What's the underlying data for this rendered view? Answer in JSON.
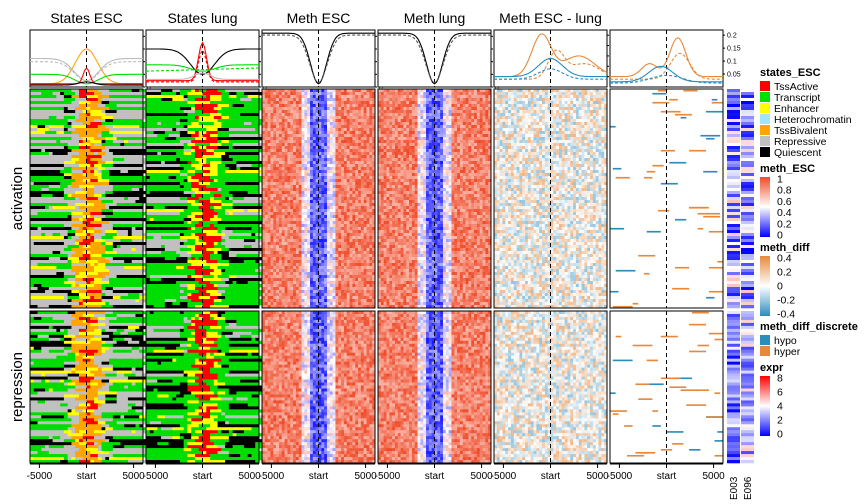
{
  "chart_data": {
    "type": "heatmap",
    "panels": [
      {
        "id": "states_esc",
        "title": "States ESC",
        "kind": "states",
        "profile_ticks": [
          "0.8",
          "0.6",
          "0.4",
          "0.2",
          "0"
        ],
        "profile_ylim": [
          0,
          0.9
        ]
      },
      {
        "id": "states_lung",
        "title": "States lung",
        "kind": "states",
        "profile_ticks": [
          "0.8",
          "0.6",
          "0.4",
          "0.2",
          "0"
        ],
        "profile_ylim": [
          0,
          0.9
        ]
      },
      {
        "id": "meth_esc",
        "title": "Meth ESC",
        "kind": "meth",
        "profile_ticks": [
          "0.8",
          "0.6",
          "0.4",
          "0.2",
          "0"
        ],
        "profile_ylim": [
          0,
          0.9
        ]
      },
      {
        "id": "meth_lung",
        "title": "Meth lung",
        "kind": "meth",
        "profile_ticks": [
          "0.8",
          "0.6",
          "0.4",
          "0.2",
          "0"
        ],
        "profile_ylim": [
          0,
          0.9
        ]
      },
      {
        "id": "meth_diff",
        "title": "Meth ESC - lung",
        "kind": "diff",
        "profile_ticks": [
          "0.1",
          "0.08",
          "0.06",
          "0.04",
          "0.02"
        ],
        "profile_ylim": [
          0,
          0.11
        ]
      },
      {
        "id": "meth_diff_discrete",
        "title": "",
        "kind": "discrete",
        "profile_ticks": [
          "0.2",
          "0.15",
          "0.1",
          "0.05"
        ],
        "profile_ylim": [
          0,
          0.22
        ]
      }
    ],
    "x_ticks": [
      "-5000",
      "start",
      "5000"
    ],
    "x_range": [
      -6000,
      6000
    ],
    "row_groups": [
      "activation",
      "repression"
    ],
    "expr_columns": [
      "E003",
      "E096"
    ],
    "legends": {
      "states": {
        "title": "states_ESC",
        "items": [
          {
            "label": "TssActive",
            "color": "#FF0000"
          },
          {
            "label": "Transcript",
            "color": "#00DD00"
          },
          {
            "label": "Enhancer",
            "color": "#FFFF00"
          },
          {
            "label": "Heterochromatin",
            "color": "#A4E6F0"
          },
          {
            "label": "TssBivalent",
            "color": "#FFA500"
          },
          {
            "label": "Repressive",
            "color": "#C0C0C0"
          },
          {
            "label": "Quiescent",
            "color": "#000000"
          }
        ]
      },
      "meth": {
        "title": "meth_ESC",
        "ticks": [
          "1",
          "0.8",
          "0.6",
          "0.4",
          "0.2",
          "0"
        ]
      },
      "diff": {
        "title": "meth_diff",
        "ticks": [
          "0.4",
          "0.2",
          "0",
          "-0.2",
          "-0.4"
        ]
      },
      "discrete": {
        "title": "meth_diff_discrete",
        "items": [
          {
            "label": "hypo",
            "color": "#2B8CBE"
          },
          {
            "label": "hyper",
            "color": "#E6893C"
          }
        ]
      },
      "expr": {
        "title": "expr",
        "ticks": [
          "8",
          "6",
          "4",
          "2",
          "0"
        ]
      }
    },
    "colors": {
      "meth_high": "#F04A28",
      "meth_mid": "#FFFFFF",
      "meth_low": "#0000FF",
      "diff_pos": "#E6893C",
      "diff_neg": "#2B8CBE",
      "expr_high": "#FF0000",
      "expr_low": "#0000FF"
    }
  }
}
